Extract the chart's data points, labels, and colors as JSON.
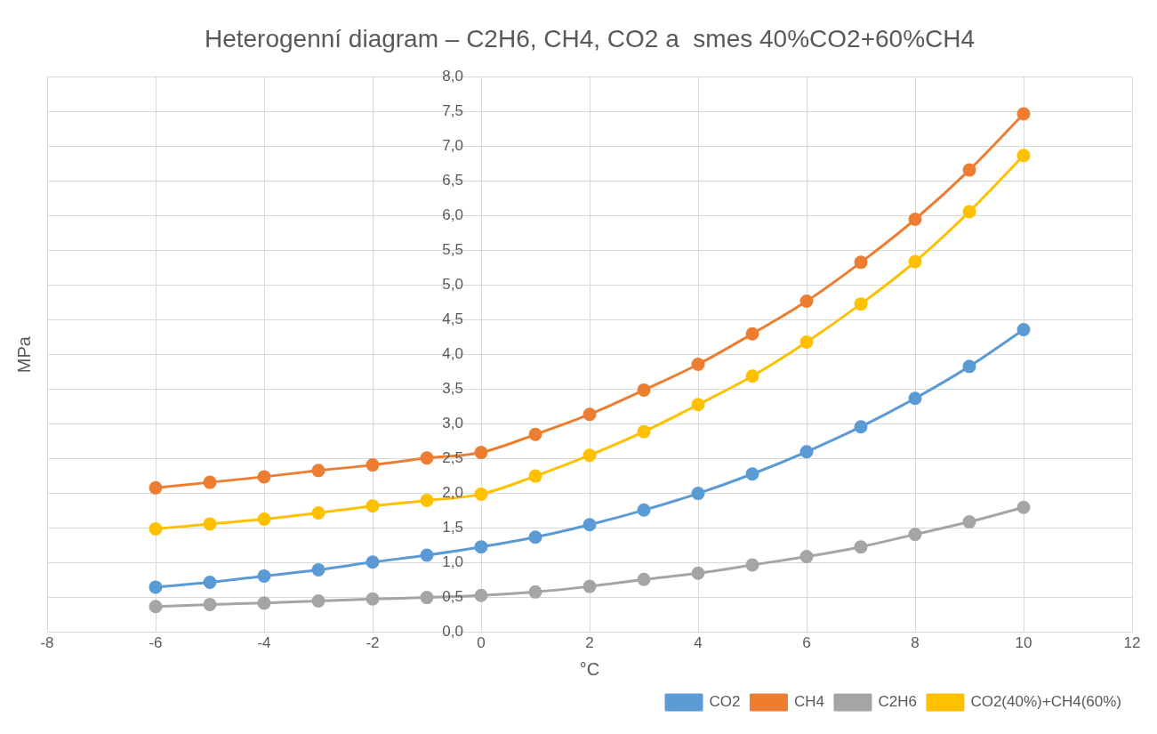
{
  "chart_data": {
    "type": "line",
    "title": "Heterogenní diagram – C2H6, CH4, CO2 a  smes 40%CO2+60%CH4",
    "xlabel": "°C",
    "ylabel": "MPa",
    "x": [
      -6,
      -5,
      -4,
      -3,
      -2,
      -1,
      0,
      1,
      2,
      3,
      4,
      5,
      6,
      7,
      8,
      9,
      10
    ],
    "series": [
      {
        "name": "CO2",
        "color": "#5b9bd5",
        "values": [
          0.65,
          0.72,
          0.81,
          0.9,
          1.01,
          1.11,
          1.23,
          1.37,
          1.55,
          1.76,
          2.0,
          2.28,
          2.6,
          2.96,
          3.37,
          3.83,
          4.36
        ]
      },
      {
        "name": "CH4",
        "color": "#ed7d31",
        "values": [
          2.08,
          2.16,
          2.24,
          2.33,
          2.41,
          2.51,
          2.59,
          2.85,
          3.14,
          3.49,
          3.86,
          4.3,
          4.77,
          5.33,
          5.95,
          6.66,
          7.47
        ]
      },
      {
        "name": "C2H6",
        "color": "#a5a5a5",
        "values": [
          0.37,
          0.4,
          0.42,
          0.45,
          0.48,
          0.5,
          0.53,
          0.58,
          0.66,
          0.76,
          0.85,
          0.97,
          1.09,
          1.23,
          1.41,
          1.59,
          1.8
        ]
      },
      {
        "name": "CO2(40%)+CH4(60%)",
        "color": "#ffc000",
        "values": [
          1.49,
          1.56,
          1.63,
          1.72,
          1.82,
          1.9,
          1.99,
          2.25,
          2.55,
          2.89,
          3.28,
          3.69,
          4.18,
          4.73,
          5.34,
          6.06,
          6.87
        ]
      }
    ],
    "xlim": [
      -8,
      12
    ],
    "xticks": [
      -8,
      -6,
      -4,
      -2,
      0,
      2,
      4,
      6,
      8,
      10,
      12
    ],
    "ylim": [
      0,
      8
    ],
    "yticks": [
      {
        "value": 0,
        "label": "0,0"
      },
      {
        "value": 0.5,
        "label": "0,5"
      },
      {
        "value": 1,
        "label": "1,0"
      },
      {
        "value": 1.5,
        "label": "1,5"
      },
      {
        "value": 2,
        "label": "2,0"
      },
      {
        "value": 2.5,
        "label": "2,5"
      },
      {
        "value": 3,
        "label": "3,0"
      },
      {
        "value": 3.5,
        "label": "3,5"
      },
      {
        "value": 4,
        "label": "4,0"
      },
      {
        "value": 4.5,
        "label": "4,5"
      },
      {
        "value": 5,
        "label": "5,0"
      },
      {
        "value": 5.5,
        "label": "5,5"
      },
      {
        "value": 6,
        "label": "6,0"
      },
      {
        "value": 6.5,
        "label": "6,5"
      },
      {
        "value": 7,
        "label": "7,0"
      },
      {
        "value": 7.5,
        "label": "7,5"
      },
      {
        "value": 8,
        "label": "8,0"
      }
    ],
    "grid": true,
    "legend": "bottom right",
    "marker": "circle",
    "line_style": "solid"
  }
}
